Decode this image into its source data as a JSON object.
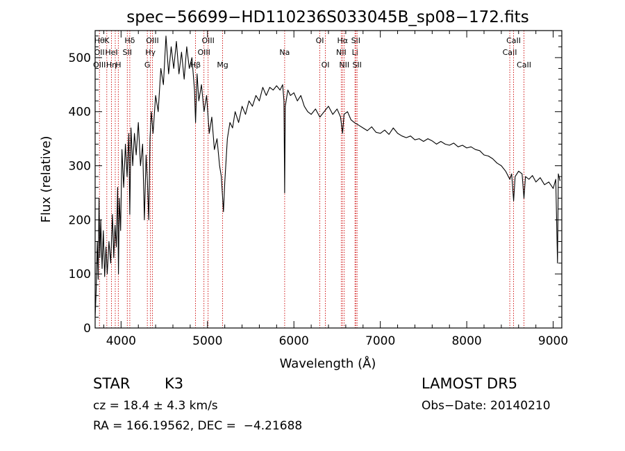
{
  "chart_data": {
    "type": "line",
    "title": "spec−56699−HD110236S033045B_sp08−172.fits",
    "xlabel": "Wavelength (Å)",
    "ylabel": "Flux (relative)",
    "xlim": [
      3700,
      9100
    ],
    "ylim": [
      0,
      550
    ],
    "xticks": [
      4000,
      5000,
      6000,
      7000,
      8000,
      9000
    ],
    "yticks": [
      0,
      100,
      200,
      300,
      400,
      500
    ],
    "grid": false,
    "line_color": "#000000",
    "marker_color": "#cc0000",
    "series": [
      {
        "values": [
          [
            3700,
            20
          ],
          [
            3712,
            70
          ],
          [
            3725,
            160
          ],
          [
            3735,
            90
          ],
          [
            3745,
            240
          ],
          [
            3755,
            130
          ],
          [
            3765,
            200
          ],
          [
            3780,
            110
          ],
          [
            3795,
            180
          ],
          [
            3810,
            95
          ],
          [
            3825,
            150
          ],
          [
            3840,
            100
          ],
          [
            3860,
            160
          ],
          [
            3880,
            120
          ],
          [
            3900,
            210
          ],
          [
            3915,
            130
          ],
          [
            3930,
            190
          ],
          [
            3945,
            150
          ],
          [
            3960,
            260
          ],
          [
            3970,
            100
          ],
          [
            3980,
            240
          ],
          [
            3995,
            180
          ],
          [
            4010,
            330
          ],
          [
            4030,
            260
          ],
          [
            4050,
            340
          ],
          [
            4070,
            280
          ],
          [
            4090,
            360
          ],
          [
            4101,
            210
          ],
          [
            4115,
            370
          ],
          [
            4135,
            300
          ],
          [
            4155,
            360
          ],
          [
            4175,
            320
          ],
          [
            4200,
            380
          ],
          [
            4225,
            300
          ],
          [
            4250,
            340
          ],
          [
            4270,
            200
          ],
          [
            4290,
            320
          ],
          [
            4305,
            270
          ],
          [
            4320,
            200
          ],
          [
            4335,
            350
          ],
          [
            4350,
            400
          ],
          [
            4370,
            360
          ],
          [
            4400,
            430
          ],
          [
            4430,
            400
          ],
          [
            4460,
            480
          ],
          [
            4490,
            450
          ],
          [
            4520,
            540
          ],
          [
            4550,
            470
          ],
          [
            4580,
            520
          ],
          [
            4610,
            480
          ],
          [
            4640,
            530
          ],
          [
            4670,
            470
          ],
          [
            4700,
            510
          ],
          [
            4730,
            460
          ],
          [
            4760,
            520
          ],
          [
            4790,
            480
          ],
          [
            4820,
            500
          ],
          [
            4850,
            440
          ],
          [
            4862,
            380
          ],
          [
            4880,
            470
          ],
          [
            4900,
            420
          ],
          [
            4930,
            450
          ],
          [
            4960,
            400
          ],
          [
            4990,
            430
          ],
          [
            5020,
            360
          ],
          [
            5050,
            390
          ],
          [
            5080,
            330
          ],
          [
            5110,
            350
          ],
          [
            5140,
            300
          ],
          [
            5160,
            280
          ],
          [
            5175,
            240
          ],
          [
            5185,
            215
          ],
          [
            5200,
            270
          ],
          [
            5230,
            350
          ],
          [
            5260,
            380
          ],
          [
            5290,
            370
          ],
          [
            5320,
            400
          ],
          [
            5360,
            380
          ],
          [
            5400,
            410
          ],
          [
            5440,
            395
          ],
          [
            5480,
            420
          ],
          [
            5520,
            410
          ],
          [
            5560,
            430
          ],
          [
            5600,
            420
          ],
          [
            5640,
            445
          ],
          [
            5680,
            430
          ],
          [
            5720,
            445
          ],
          [
            5760,
            440
          ],
          [
            5800,
            448
          ],
          [
            5840,
            440
          ],
          [
            5870,
            450
          ],
          [
            5885,
            420
          ],
          [
            5893,
            250
          ],
          [
            5900,
            410
          ],
          [
            5930,
            440
          ],
          [
            5960,
            430
          ],
          [
            6000,
            435
          ],
          [
            6040,
            420
          ],
          [
            6080,
            430
          ],
          [
            6120,
            410
          ],
          [
            6160,
            400
          ],
          [
            6200,
            395
          ],
          [
            6250,
            405
          ],
          [
            6300,
            390
          ],
          [
            6350,
            400
          ],
          [
            6400,
            410
          ],
          [
            6450,
            395
          ],
          [
            6500,
            405
          ],
          [
            6540,
            390
          ],
          [
            6563,
            360
          ],
          [
            6580,
            395
          ],
          [
            6620,
            400
          ],
          [
            6660,
            385
          ],
          [
            6700,
            380
          ],
          [
            6750,
            375
          ],
          [
            6800,
            370
          ],
          [
            6850,
            365
          ],
          [
            6900,
            372
          ],
          [
            6950,
            362
          ],
          [
            7000,
            360
          ],
          [
            7050,
            366
          ],
          [
            7100,
            358
          ],
          [
            7150,
            370
          ],
          [
            7200,
            360
          ],
          [
            7250,
            355
          ],
          [
            7300,
            352
          ],
          [
            7350,
            355
          ],
          [
            7400,
            348
          ],
          [
            7450,
            350
          ],
          [
            7500,
            345
          ],
          [
            7550,
            350
          ],
          [
            7600,
            346
          ],
          [
            7650,
            340
          ],
          [
            7700,
            345
          ],
          [
            7750,
            340
          ],
          [
            7800,
            338
          ],
          [
            7850,
            342
          ],
          [
            7900,
            335
          ],
          [
            7950,
            338
          ],
          [
            8000,
            333
          ],
          [
            8050,
            335
          ],
          [
            8100,
            330
          ],
          [
            8150,
            328
          ],
          [
            8200,
            320
          ],
          [
            8250,
            318
          ],
          [
            8300,
            313
          ],
          [
            8350,
            305
          ],
          [
            8400,
            300
          ],
          [
            8450,
            290
          ],
          [
            8498,
            275
          ],
          [
            8520,
            285
          ],
          [
            8542,
            235
          ],
          [
            8560,
            280
          ],
          [
            8600,
            290
          ],
          [
            8640,
            285
          ],
          [
            8662,
            240
          ],
          [
            8680,
            280
          ],
          [
            8720,
            275
          ],
          [
            8760,
            282
          ],
          [
            8800,
            270
          ],
          [
            8850,
            278
          ],
          [
            8900,
            265
          ],
          [
            8950,
            270
          ],
          [
            9000,
            258
          ],
          [
            9030,
            275
          ],
          [
            9050,
            120
          ],
          [
            9060,
            285
          ],
          [
            9080,
            272
          ]
        ]
      }
    ],
    "lines": [
      {
        "x": 3750,
        "labels": [
          "Hθ",
          "OII",
          "OIII"
        ],
        "rows": [
          1,
          2,
          3
        ]
      },
      {
        "x": 3835,
        "labels": [
          "K"
        ],
        "rows": [
          1
        ]
      },
      {
        "x": 3889,
        "labels": [
          "HeI",
          "Hη"
        ],
        "rows": [
          2,
          3
        ]
      },
      {
        "x": 3933,
        "labels": [],
        "rows": []
      },
      {
        "x": 3968,
        "labels": [
          "H"
        ],
        "rows": [
          3
        ]
      },
      {
        "x": 4072,
        "labels": [
          "SII"
        ],
        "rows": [
          2
        ]
      },
      {
        "x": 4101,
        "labels": [
          "Hδ"
        ],
        "rows": [
          1
        ]
      },
      {
        "x": 4304,
        "labels": [
          "G"
        ],
        "rows": [
          3
        ]
      },
      {
        "x": 4340,
        "labels": [
          "Hγ"
        ],
        "rows": [
          2
        ]
      },
      {
        "x": 4363,
        "labels": [
          "OIII"
        ],
        "rows": [
          1
        ]
      },
      {
        "x": 4861,
        "labels": [
          "Hβ"
        ],
        "rows": [
          3
        ]
      },
      {
        "x": 4959,
        "labels": [
          "OIII"
        ],
        "rows": [
          2
        ]
      },
      {
        "x": 5007,
        "labels": [
          "OIII"
        ],
        "rows": [
          1
        ]
      },
      {
        "x": 5175,
        "labels": [
          "Mg"
        ],
        "rows": [
          3
        ]
      },
      {
        "x": 5893,
        "labels": [
          "Na"
        ],
        "rows": [
          2
        ]
      },
      {
        "x": 6300,
        "labels": [
          "OI"
        ],
        "rows": [
          1
        ]
      },
      {
        "x": 6364,
        "labels": [
          "OI"
        ],
        "rows": [
          3
        ]
      },
      {
        "x": 6548,
        "labels": [
          "NII"
        ],
        "rows": [
          2
        ]
      },
      {
        "x": 6563,
        "labels": [
          "Hα"
        ],
        "rows": [
          1
        ]
      },
      {
        "x": 6583,
        "labels": [
          "NII"
        ],
        "rows": [
          3
        ]
      },
      {
        "x": 6707,
        "labels": [
          "Li"
        ],
        "rows": [
          2
        ]
      },
      {
        "x": 6716,
        "labels": [
          "SII"
        ],
        "rows": [
          1
        ]
      },
      {
        "x": 6731,
        "labels": [
          "SII"
        ],
        "rows": [
          3
        ]
      },
      {
        "x": 8498,
        "labels": [
          "CaII"
        ],
        "rows": [
          2
        ]
      },
      {
        "x": 8542,
        "labels": [
          "CaII"
        ],
        "rows": [
          1
        ]
      },
      {
        "x": 8662,
        "labels": [
          "CaII"
        ],
        "rows": [
          3
        ]
      }
    ]
  },
  "info": {
    "object_class": "STAR",
    "subclass": "K3",
    "survey": "LAMOST DR5",
    "cz": "cz = 18.4 ± 4.3 km/s",
    "obs_date": "Obs−Date: 20140210",
    "radec": "RA = 166.19562, DEC =  −4.21688"
  }
}
